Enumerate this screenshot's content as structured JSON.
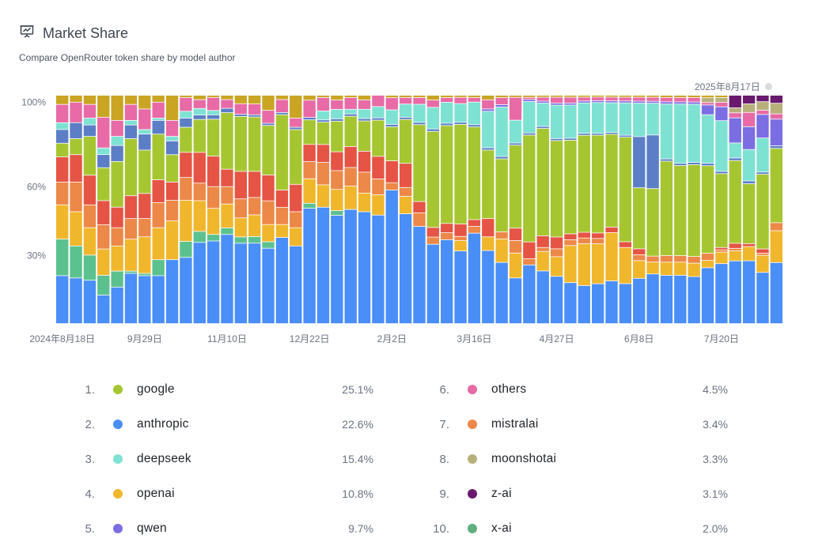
{
  "header": {
    "icon": "presentation-chart-icon",
    "title": "Market Share",
    "subtitle": "Compare OpenRouter token share by model author",
    "latest_date": "2025年8月17日"
  },
  "chart_data": {
    "type": "bar",
    "stacked": true,
    "normalized": true,
    "y_ticks": [
      "30%",
      "60%",
      "100%"
    ],
    "x_ticks": [
      "2024年8月18日",
      "9月29日",
      "11月10日",
      "12月22日",
      "2月2日",
      "3月16日",
      "4月27日",
      "6月8日",
      "7月20日"
    ],
    "x_tick_positions": [
      0,
      6,
      12,
      18,
      24,
      30,
      36,
      42,
      48
    ],
    "num_weeks": 53,
    "series_order": [
      "anthropic",
      "x-ai",
      "openai",
      "mistralai",
      "red",
      "google",
      "slate",
      "deepseek",
      "qwen",
      "others",
      "moonshotai",
      "z-ai",
      "misc"
    ],
    "series": [
      {
        "name": "anthropic",
        "color": "#4a8ef7",
        "values": [
          21,
          20,
          19,
          13,
          16,
          22,
          21,
          21,
          28,
          29,
          37,
          38,
          41,
          38,
          37,
          35,
          40,
          34,
          47,
          52,
          46,
          49,
          48,
          48,
          55,
          50,
          43,
          33,
          36,
          35,
          40,
          32,
          26,
          22,
          28,
          27,
          24,
          21,
          20,
          22,
          23,
          21,
          23,
          25,
          22,
          22,
          21,
          23,
          26,
          25,
          22,
          24,
          23
        ]
      },
      {
        "name": "x-ai",
        "color": "#5bc18f",
        "values": [
          16,
          14,
          11,
          9,
          7,
          1,
          1,
          7,
          0,
          7,
          5,
          3,
          3,
          3,
          3,
          3,
          0,
          0,
          2,
          0,
          2,
          0,
          0,
          0,
          0,
          0,
          0,
          0,
          0,
          0,
          0,
          0,
          0,
          0,
          0,
          0,
          0,
          0,
          0,
          0,
          0,
          0,
          0,
          0,
          0,
          0,
          0,
          0,
          0,
          0,
          0,
          0,
          0
        ]
      },
      {
        "name": "openai",
        "color": "#f0b62c",
        "values": [
          15,
          15,
          12,
          12,
          11,
          14,
          16,
          14,
          17,
          18,
          14,
          12,
          11,
          9,
          10,
          8,
          6,
          8,
          10,
          10,
          9,
          10,
          8,
          9,
          0,
          8,
          0,
          0,
          0,
          5,
          0,
          6,
          10,
          12,
          0,
          10,
          10,
          19,
          22,
          22,
          26,
          19,
          9,
          6,
          6,
          6,
          6,
          3,
          5,
          4,
          5,
          8,
          12
        ]
      },
      {
        "name": "mistralai",
        "color": "#ec8848",
        "values": [
          10,
          13,
          10,
          11,
          8,
          9,
          8,
          11,
          9,
          10,
          8,
          10,
          8,
          9,
          8,
          11,
          8,
          7,
          7,
          10,
          8,
          8,
          9,
          7,
          3,
          4,
          6,
          3,
          3,
          2,
          3,
          0,
          3,
          6,
          3,
          2,
          4,
          3,
          3,
          3,
          0,
          0,
          3,
          3,
          3,
          3,
          3,
          3,
          1,
          1,
          0,
          1,
          3
        ]
      },
      {
        "name": "red",
        "color": "#e55445",
        "values": [
          11,
          12,
          13,
          11,
          9,
          10,
          11,
          10,
          8,
          11,
          14,
          14,
          8,
          13,
          12,
          12,
          8,
          12,
          7,
          8,
          8,
          9,
          9,
          10,
          9,
          11,
          5,
          4,
          4,
          6,
          3,
          8,
          0,
          6,
          8,
          6,
          6,
          3,
          3,
          3,
          3,
          3,
          3,
          0,
          0,
          0,
          0,
          0,
          1,
          2,
          1,
          2,
          0
        ]
      },
      {
        "name": "google",
        "color": "#a6c631",
        "values": [
          6,
          7,
          17,
          15,
          20,
          25,
          19,
          20,
          12,
          11,
          15,
          17,
          26,
          26,
          25,
          23,
          35,
          24,
          10,
          10,
          13,
          13,
          13,
          16,
          14,
          20,
          34,
          40,
          42,
          48,
          41,
          30,
          31,
          40,
          51,
          55,
          49,
          48,
          51,
          54,
          50,
          55,
          31,
          34,
          43,
          41,
          41,
          36,
          32,
          33,
          21,
          35,
          28
        ]
      },
      {
        "name": "slate",
        "color": "#5b7ec6",
        "values": [
          6,
          7,
          5,
          6,
          7,
          6,
          7,
          6,
          6,
          4,
          2,
          2,
          2,
          1,
          1,
          1,
          1,
          1,
          1,
          1,
          1,
          1,
          1,
          1,
          1,
          1,
          1,
          1,
          1,
          1,
          1,
          1,
          1,
          1,
          1,
          1,
          1,
          1,
          1,
          1,
          1,
          1,
          26,
          27,
          1,
          1,
          1,
          1,
          1,
          1,
          1,
          1,
          1
        ]
      },
      {
        "name": "deepseek",
        "color": "#7ee2d3",
        "values": [
          3,
          0,
          3,
          3,
          4,
          2,
          2,
          1,
          2,
          3,
          3,
          2,
          0,
          0,
          0,
          0,
          0,
          0,
          0,
          4,
          4,
          2,
          4,
          5,
          6,
          6,
          8,
          9,
          9,
          9,
          10,
          16,
          21,
          11,
          15,
          12,
          17,
          17,
          16,
          17,
          16,
          17,
          17,
          16,
          25,
          27,
          26,
          20,
          22,
          6,
          11,
          16,
          0
        ]
      },
      {
        "name": "qwen",
        "color": "#7b6ee3",
        "values": [
          0,
          0,
          0,
          0,
          0,
          0,
          0,
          0,
          0,
          0,
          0,
          0,
          0,
          0,
          0,
          0,
          0,
          0,
          0,
          0,
          0,
          0,
          0,
          0,
          0,
          0,
          0,
          0,
          0,
          0,
          0,
          1,
          1,
          0,
          1,
          1,
          1,
          1,
          1,
          1,
          1,
          1,
          1,
          1,
          1,
          1,
          1,
          4,
          6,
          10,
          8,
          11,
          10
        ]
      },
      {
        "name": "others",
        "color": "#e86aa6",
        "values": [
          8,
          9,
          6,
          14,
          7,
          7,
          9,
          7,
          7,
          6,
          4,
          6,
          4,
          5,
          5,
          6,
          6,
          4,
          7,
          6,
          4,
          5,
          4,
          5,
          5,
          3,
          3,
          3,
          2,
          3,
          2,
          4,
          3,
          11,
          1,
          2,
          3,
          3,
          2,
          2,
          2,
          2,
          2,
          2,
          2,
          2,
          2,
          1,
          2,
          2,
          5,
          2,
          2
        ]
      },
      {
        "name": "moonshotai",
        "color": "#b8b07b",
        "values": [
          0,
          0,
          0,
          0,
          0,
          0,
          0,
          0,
          0,
          0,
          0,
          0,
          0,
          0,
          0,
          0,
          0,
          0,
          0,
          0,
          0,
          0,
          0,
          0,
          0,
          0,
          0,
          0,
          0,
          0,
          0,
          0,
          0,
          0,
          0,
          0,
          0,
          0,
          0,
          0,
          0,
          0,
          0,
          0,
          0,
          0,
          0,
          2,
          2,
          2,
          3,
          4,
          4
        ]
      },
      {
        "name": "z-ai",
        "color": "#6a1a6e",
        "values": [
          0,
          0,
          0,
          0,
          0,
          0,
          0,
          0,
          0,
          0,
          0,
          0,
          0,
          0,
          0,
          0,
          0,
          0,
          0,
          0,
          0,
          0,
          0,
          0,
          0,
          0,
          0,
          0,
          0,
          0,
          0,
          0,
          0,
          0,
          0,
          0,
          0,
          0,
          0,
          0,
          0,
          0,
          0,
          0,
          0,
          0,
          0,
          0,
          0,
          5,
          3,
          3,
          3
        ]
      },
      {
        "name": "misc",
        "color": "#c9a523",
        "values": [
          4,
          3,
          4,
          10,
          11,
          4,
          6,
          3,
          11,
          1,
          2,
          1,
          2,
          4,
          4,
          7,
          2,
          10,
          2,
          1,
          2,
          1,
          2,
          0,
          1,
          1,
          1,
          2,
          1,
          1,
          1,
          2,
          1,
          1,
          1,
          1,
          1,
          1,
          1,
          1,
          1,
          1,
          1,
          1,
          1,
          1,
          1,
          1,
          1,
          0,
          0,
          0,
          0
        ]
      }
    ],
    "legend": [
      {
        "rank": "1.",
        "name": "google",
        "percent": "25.1%",
        "color": "#a6c631"
      },
      {
        "rank": "2.",
        "name": "anthropic",
        "percent": "22.6%",
        "color": "#4a8ef7"
      },
      {
        "rank": "3.",
        "name": "deepseek",
        "percent": "15.4%",
        "color": "#7ee2d3"
      },
      {
        "rank": "4.",
        "name": "openai",
        "percent": "10.8%",
        "color": "#f0b62c"
      },
      {
        "rank": "5.",
        "name": "qwen",
        "percent": "9.7%",
        "color": "#7b6ee3"
      },
      {
        "rank": "6.",
        "name": "others",
        "percent": "4.5%",
        "color": "#e86aa6"
      },
      {
        "rank": "7.",
        "name": "mistralai",
        "percent": "3.4%",
        "color": "#ec8848"
      },
      {
        "rank": "8.",
        "name": "moonshotai",
        "percent": "3.3%",
        "color": "#b8b07b"
      },
      {
        "rank": "9.",
        "name": "z-ai",
        "percent": "3.1%",
        "color": "#6a1a6e"
      },
      {
        "rank": "10.",
        "name": "x-ai",
        "percent": "2.0%",
        "color": "#5fae7d"
      }
    ]
  }
}
